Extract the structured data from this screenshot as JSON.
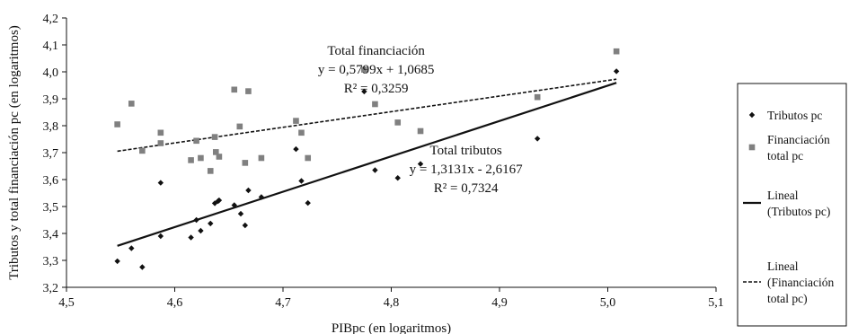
{
  "chart_data": {
    "type": "scatter",
    "xlabel": "PIBpc (en logaritmos)",
    "ylabel": "Tributos y total financiación pc (en logaritmos)",
    "xlim": [
      4.5,
      5.1
    ],
    "ylim": [
      3.2,
      4.2
    ],
    "x_ticks": [
      "4,5",
      "4,6",
      "4,7",
      "4,8",
      "4,9",
      "5,0",
      "5,1"
    ],
    "y_ticks": [
      "3,2",
      "3,3",
      "3,4",
      "3,5",
      "3,6",
      "3,7",
      "3,8",
      "3,9",
      "4,0",
      "4,1",
      "4,2"
    ],
    "grid": false,
    "legend_position": "right",
    "series": [
      {
        "name": "Tributos pc",
        "marker": "diamond",
        "color": "#111111",
        "points": [
          [
            4.547,
            3.297
          ],
          [
            4.56,
            3.345
          ],
          [
            4.57,
            3.275
          ],
          [
            4.587,
            3.39
          ],
          [
            4.587,
            3.588
          ],
          [
            4.615,
            3.385
          ],
          [
            4.62,
            3.45
          ],
          [
            4.624,
            3.41
          ],
          [
            4.633,
            3.437
          ],
          [
            4.637,
            3.512
          ],
          [
            4.64,
            3.52
          ],
          [
            4.641,
            3.523
          ],
          [
            4.655,
            3.505
          ],
          [
            4.661,
            3.473
          ],
          [
            4.665,
            3.43
          ],
          [
            4.668,
            3.56
          ],
          [
            4.68,
            3.535
          ],
          [
            4.712,
            3.713
          ],
          [
            4.717,
            3.595
          ],
          [
            4.723,
            3.513
          ],
          [
            4.775,
            3.927
          ],
          [
            4.785,
            3.635
          ],
          [
            4.806,
            3.606
          ],
          [
            4.827,
            3.658
          ],
          [
            4.935,
            3.752
          ],
          [
            5.008,
            4.002
          ]
        ]
      },
      {
        "name": "Financiación total pc",
        "marker": "square",
        "color": "#808080",
        "points": [
          [
            4.547,
            3.805
          ],
          [
            4.56,
            3.882
          ],
          [
            4.57,
            3.707
          ],
          [
            4.587,
            3.774
          ],
          [
            4.587,
            3.735
          ],
          [
            4.615,
            3.672
          ],
          [
            4.62,
            3.744
          ],
          [
            4.624,
            3.68
          ],
          [
            4.633,
            3.632
          ],
          [
            4.637,
            3.758
          ],
          [
            4.638,
            3.702
          ],
          [
            4.641,
            3.685
          ],
          [
            4.655,
            3.934
          ],
          [
            4.66,
            3.797
          ],
          [
            4.665,
            3.662
          ],
          [
            4.668,
            3.928
          ],
          [
            4.68,
            3.68
          ],
          [
            4.712,
            3.818
          ],
          [
            4.717,
            3.774
          ],
          [
            4.723,
            3.68
          ],
          [
            4.775,
            4.008
          ],
          [
            4.785,
            3.88
          ],
          [
            4.806,
            3.812
          ],
          [
            4.827,
            3.78
          ],
          [
            4.935,
            3.906
          ],
          [
            5.008,
            4.076
          ]
        ]
      }
    ],
    "trendlines": [
      {
        "name": "Lineal (Tributos pc)",
        "slope": 1.3131,
        "intercept": -2.6167,
        "x_range": [
          4.547,
          5.008
        ],
        "style": "solid",
        "color": "#111111"
      },
      {
        "name": "Lineal (Financiación total pc)",
        "slope": 0.5799,
        "intercept": 1.0685,
        "x_range": [
          4.547,
          5.008
        ],
        "style": "dashed",
        "color": "#111111"
      }
    ],
    "annotations": [
      {
        "lines": [
          "Total financiación",
          "y = 0,5799x + 1,0685",
          "R² = 0,3259"
        ],
        "at": [
          4.786,
          4.063
        ]
      },
      {
        "lines": [
          "Total tributos",
          "y = 1,3131x - 2,6167",
          "R² = 0,7324"
        ],
        "at": [
          4.869,
          3.693
        ]
      }
    ],
    "legend": [
      {
        "marker": "diamond",
        "lines": [
          "Tributos pc"
        ]
      },
      {
        "marker": "square",
        "lines": [
          "Financiación",
          "total pc"
        ]
      },
      {
        "marker": "solid-line",
        "lines": [
          "Lineal",
          "(Tributos pc)"
        ]
      },
      {
        "marker": "dashed-line",
        "lines": [
          "Lineal",
          "(Financiación",
          "total pc)"
        ]
      }
    ]
  }
}
